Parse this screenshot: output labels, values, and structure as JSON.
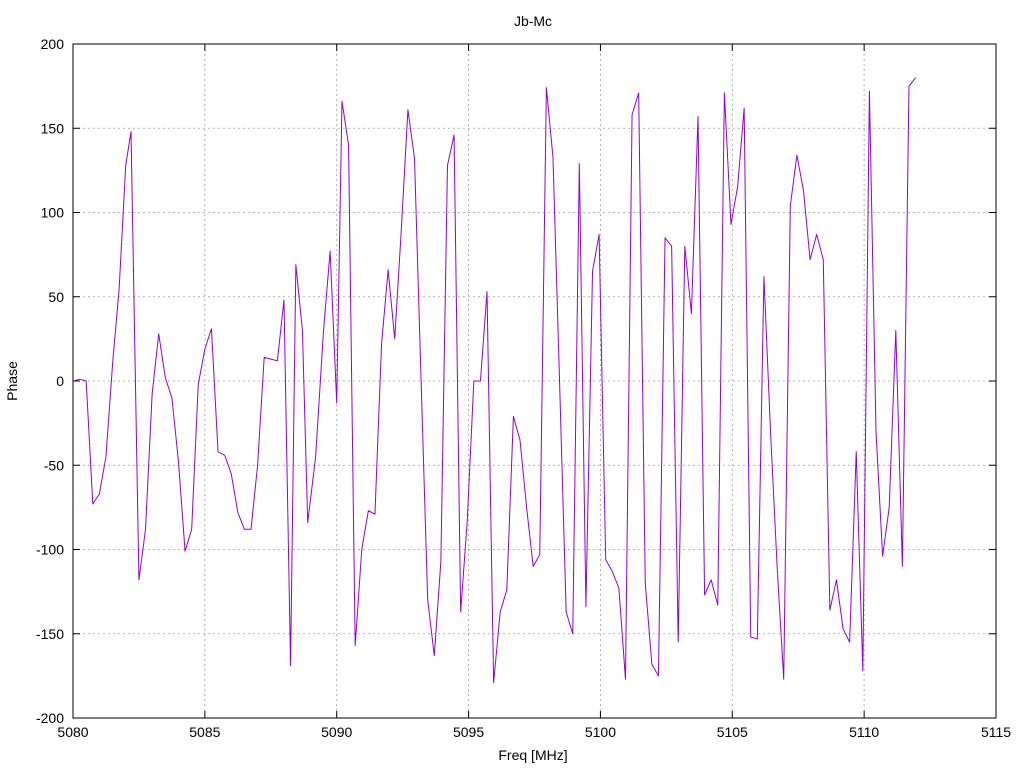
{
  "chart_data": {
    "type": "line",
    "title": "Jb-Mc",
    "xlabel": "Freq [MHz]",
    "ylabel": "Phase",
    "xlim": [
      5080,
      5115
    ],
    "ylim": [
      -200,
      200
    ],
    "x_ticks": [
      5080,
      5085,
      5090,
      5095,
      5100,
      5105,
      5110,
      5115
    ],
    "y_ticks": [
      -200,
      -150,
      -100,
      -50,
      0,
      50,
      100,
      150,
      200
    ],
    "grid": true,
    "legend": "none",
    "series": [
      {
        "color": "#9400d3",
        "points": [
          [
            5080.0,
            0
          ],
          [
            5080.25,
            1
          ],
          [
            5080.5,
            0
          ],
          [
            5080.75,
            -73
          ],
          [
            5081.0,
            -67
          ],
          [
            5081.25,
            -45
          ],
          [
            5081.5,
            10
          ],
          [
            5081.75,
            55
          ],
          [
            5082.0,
            128
          ],
          [
            5082.2,
            148
          ],
          [
            5082.5,
            -118
          ],
          [
            5082.75,
            -88
          ],
          [
            5083.0,
            -8
          ],
          [
            5083.25,
            28
          ],
          [
            5083.5,
            2
          ],
          [
            5083.75,
            -10
          ],
          [
            5084.0,
            -48
          ],
          [
            5084.25,
            -101
          ],
          [
            5084.5,
            -88
          ],
          [
            5084.75,
            -2
          ],
          [
            5085.0,
            19
          ],
          [
            5085.25,
            31
          ],
          [
            5085.5,
            -42
          ],
          [
            5085.75,
            -44
          ],
          [
            5086.0,
            -55
          ],
          [
            5086.25,
            -78
          ],
          [
            5086.5,
            -88
          ],
          [
            5086.75,
            -88
          ],
          [
            5087.0,
            -50
          ],
          [
            5087.25,
            14
          ],
          [
            5087.5,
            13
          ],
          [
            5087.75,
            12
          ],
          [
            5088.0,
            48
          ],
          [
            5088.25,
            -169
          ],
          [
            5088.45,
            69
          ],
          [
            5088.7,
            30
          ],
          [
            5088.9,
            -84
          ],
          [
            5089.2,
            -45
          ],
          [
            5089.5,
            30
          ],
          [
            5089.75,
            77
          ],
          [
            5090.0,
            -13
          ],
          [
            5090.2,
            166
          ],
          [
            5090.45,
            140
          ],
          [
            5090.7,
            -157
          ],
          [
            5090.95,
            -100
          ],
          [
            5091.2,
            -77
          ],
          [
            5091.45,
            -79
          ],
          [
            5091.7,
            22
          ],
          [
            5091.95,
            66
          ],
          [
            5092.2,
            25
          ],
          [
            5092.45,
            90
          ],
          [
            5092.7,
            161
          ],
          [
            5092.95,
            132
          ],
          [
            5093.2,
            0
          ],
          [
            5093.45,
            -130
          ],
          [
            5093.7,
            -163
          ],
          [
            5093.95,
            -107
          ],
          [
            5094.2,
            128
          ],
          [
            5094.45,
            146
          ],
          [
            5094.7,
            -137
          ],
          [
            5094.95,
            -83
          ],
          [
            5095.2,
            0
          ],
          [
            5095.45,
            0
          ],
          [
            5095.7,
            53
          ],
          [
            5095.95,
            -179
          ],
          [
            5096.2,
            -137
          ],
          [
            5096.45,
            -124
          ],
          [
            5096.7,
            -21
          ],
          [
            5096.95,
            -35
          ],
          [
            5097.2,
            -75
          ],
          [
            5097.45,
            -110
          ],
          [
            5097.7,
            -103
          ],
          [
            5097.95,
            174
          ],
          [
            5098.2,
            133
          ],
          [
            5098.45,
            0
          ],
          [
            5098.7,
            -137
          ],
          [
            5098.95,
            -150
          ],
          [
            5099.2,
            129
          ],
          [
            5099.45,
            -134
          ],
          [
            5099.7,
            65
          ],
          [
            5099.95,
            87
          ],
          [
            5100.2,
            -106
          ],
          [
            5100.45,
            -113
          ],
          [
            5100.7,
            -123
          ],
          [
            5100.95,
            -177
          ],
          [
            5101.2,
            158
          ],
          [
            5101.45,
            171
          ],
          [
            5101.7,
            -120
          ],
          [
            5101.95,
            -168
          ],
          [
            5102.2,
            -175
          ],
          [
            5102.45,
            85
          ],
          [
            5102.7,
            80
          ],
          [
            5102.95,
            -155
          ],
          [
            5103.2,
            80
          ],
          [
            5103.45,
            40
          ],
          [
            5103.7,
            157
          ],
          [
            5103.95,
            -127
          ],
          [
            5104.2,
            -118
          ],
          [
            5104.45,
            -133
          ],
          [
            5104.7,
            171
          ],
          [
            5104.95,
            93
          ],
          [
            5105.2,
            115
          ],
          [
            5105.45,
            162
          ],
          [
            5105.7,
            -152
          ],
          [
            5105.95,
            -153
          ],
          [
            5106.2,
            62
          ],
          [
            5106.45,
            -30
          ],
          [
            5106.7,
            -110
          ],
          [
            5106.95,
            -177
          ],
          [
            5107.2,
            104
          ],
          [
            5107.45,
            134
          ],
          [
            5107.7,
            113
          ],
          [
            5107.95,
            72
          ],
          [
            5108.2,
            87
          ],
          [
            5108.45,
            72
          ],
          [
            5108.7,
            -136
          ],
          [
            5108.95,
            -118
          ],
          [
            5109.2,
            -147
          ],
          [
            5109.45,
            -155
          ],
          [
            5109.7,
            -42
          ],
          [
            5109.95,
            -172
          ],
          [
            5110.2,
            172
          ],
          [
            5110.45,
            -30
          ],
          [
            5110.7,
            -104
          ],
          [
            5110.95,
            -75
          ],
          [
            5111.2,
            30
          ],
          [
            5111.45,
            -110
          ],
          [
            5111.7,
            175
          ],
          [
            5111.95,
            180
          ]
        ]
      }
    ]
  }
}
